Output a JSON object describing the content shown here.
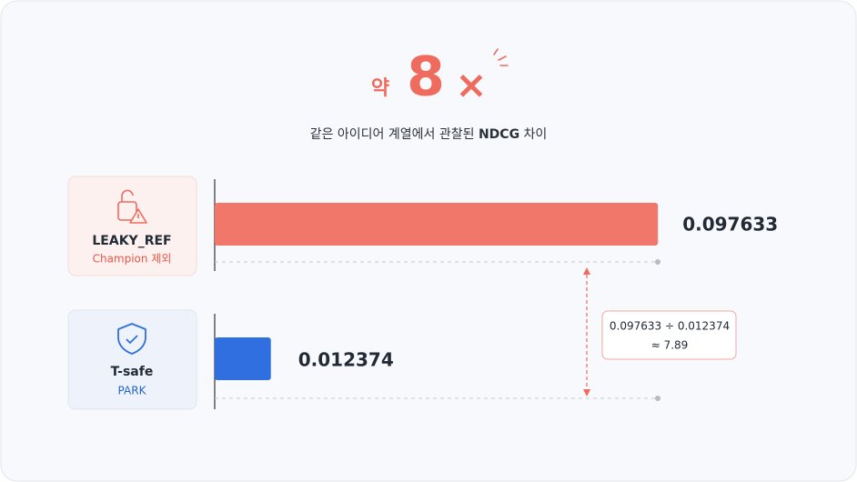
{
  "chart_data": {
    "type": "bar",
    "orientation": "horizontal",
    "headline_prefix": "약",
    "headline_value": 8,
    "headline_unit": "×",
    "subtitle": [
      "같은 아이디어 계열에서 관찰된",
      "NDCG",
      "차이"
    ],
    "categories": [
      "LEAKY_REF",
      "T-safe"
    ],
    "sublabels": [
      "Champion 제외",
      "PARK"
    ],
    "values": [
      0.097633,
      0.012374
    ],
    "colors": [
      "#f2776b",
      "#2f6fe0"
    ],
    "xlim": [
      0,
      0.1
    ],
    "annotation": {
      "expression": "0.097633 ÷ 0.012374",
      "result": "≈ 7.89"
    }
  }
}
